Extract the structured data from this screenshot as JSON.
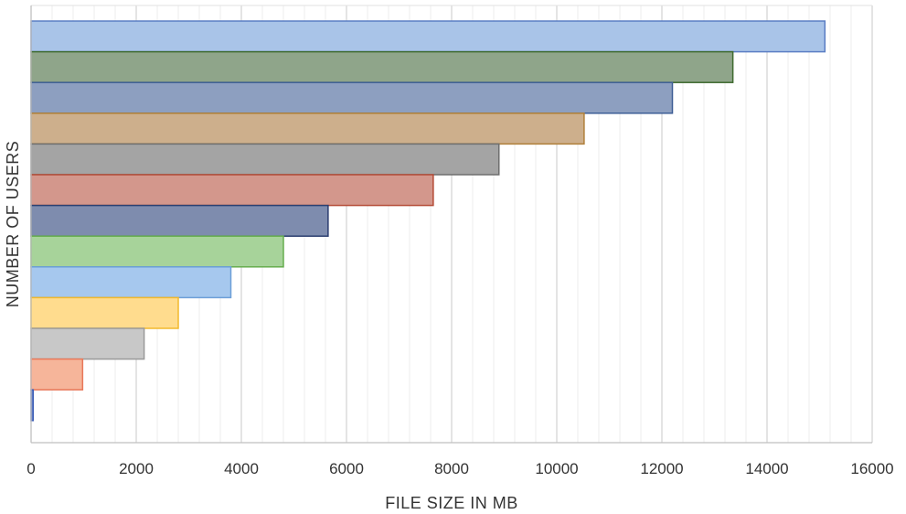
{
  "chart_data": {
    "type": "bar",
    "orientation": "horizontal",
    "title": "",
    "xlabel": "FILE SIZE IN MB",
    "ylabel": "NUMBER OF USERS",
    "xlim": [
      0,
      16000
    ],
    "x_ticks": [
      0,
      2000,
      4000,
      6000,
      8000,
      10000,
      12000,
      14000,
      16000
    ],
    "x_tick_labels": [
      "0",
      "2000",
      "4000",
      "6000",
      "8000",
      "10000",
      "12000",
      "14000",
      "16000"
    ],
    "grid": "vertical",
    "legend": "none",
    "values": [
      15100,
      13350,
      12200,
      10520,
      8900,
      7650,
      5650,
      4800,
      3800,
      2800,
      2150,
      980,
      40
    ],
    "colors": [
      "#a9c4e8",
      "#8fa58a",
      "#8d9fc0",
      "#cdaf8c",
      "#a4a4a4",
      "#d3978c",
      "#7e8cae",
      "#a7d39a",
      "#a6c8ee",
      "#ffdc8e",
      "#c8c8c8",
      "#f6b59a",
      "#6a86c8"
    ],
    "edge_colors": [
      "#5b7ec4",
      "#3e6a2e",
      "#3f5f96",
      "#b0803a",
      "#6e6e6e",
      "#b44a36",
      "#2c3f70",
      "#66ad4f",
      "#6d9fd8",
      "#f2b92d",
      "#9a9a9a",
      "#e8785a",
      "#3e5fb6"
    ]
  }
}
